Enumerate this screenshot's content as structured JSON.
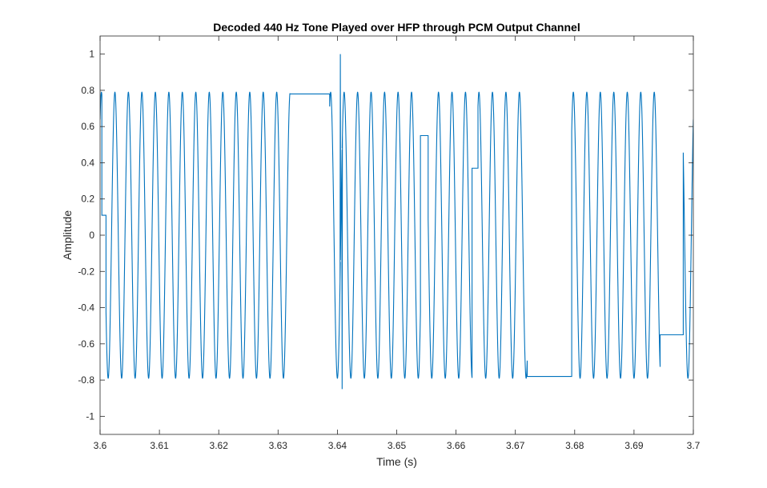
{
  "chart_data": {
    "type": "line",
    "title": "Decoded 440 Hz Tone Played over HFP through PCM Output Channel",
    "xlabel": "Time (s)",
    "ylabel": "Amplitude",
    "xlim": [
      3.6,
      3.7
    ],
    "ylim": [
      -1.1,
      1.1
    ],
    "xticks": [
      3.6,
      3.61,
      3.62,
      3.63,
      3.64,
      3.65,
      3.66,
      3.67,
      3.68,
      3.69,
      3.7
    ],
    "xtick_labels": [
      "3.6",
      "3.61",
      "3.62",
      "3.63",
      "3.64",
      "3.65",
      "3.66",
      "3.67",
      "3.68",
      "3.69",
      "3.7"
    ],
    "yticks": [
      -1,
      -0.8,
      -0.6,
      -0.4,
      -0.2,
      0,
      0.2,
      0.4,
      0.6,
      0.8,
      1
    ],
    "ytick_labels": [
      "-1",
      "-0.8",
      "-0.6",
      "-0.4",
      "-0.2",
      "0",
      "0.2",
      "0.4",
      "0.6",
      "0.8",
      "1"
    ],
    "grid": false,
    "box": true,
    "series_color": "#0072BD",
    "series": [
      {
        "frequency_hz": 440,
        "amplitude": 0.79,
        "peak_time": 3.6025,
        "held_segments": [
          {
            "t_start": 3.6003,
            "t_end": 3.601,
            "value": 0.11
          },
          {
            "t_start": 3.632,
            "t_end": 3.6387,
            "value": 0.78
          },
          {
            "t_start": 3.654,
            "t_end": 3.6553,
            "value": 0.55
          },
          {
            "t_start": 3.6627,
            "t_end": 3.6637,
            "value": 0.37
          },
          {
            "t_start": 3.672,
            "t_end": 3.6795,
            "value": -0.78
          },
          {
            "t_start": 3.6944,
            "t_end": 3.6983,
            "value": -0.55
          }
        ],
        "glitches": [
          {
            "t": 3.6405,
            "value": 1.0
          },
          {
            "t": 3.6408,
            "value": -0.85
          }
        ]
      }
    ]
  }
}
